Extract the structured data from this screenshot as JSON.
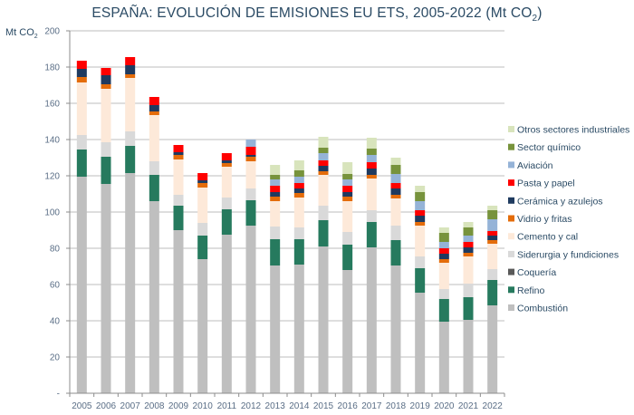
{
  "chart_data": {
    "type": "bar",
    "stacked": true,
    "title": "ESPAÑA: EVOLUCIÓN DE EMISIONES EU ETS, 2005-2022 (Mt CO",
    "title_sub": "2",
    "title_end": ")",
    "ylabel": "Mt CO",
    "ylabel_sub": "2",
    "xlabel": "",
    "ylim": [
      0,
      200
    ],
    "yticks": [
      0,
      20,
      40,
      60,
      80,
      100,
      120,
      140,
      160,
      180,
      200
    ],
    "ytick_labels": [
      "-",
      "20",
      "40",
      "60",
      "80",
      "100",
      "120",
      "140",
      "160",
      "180",
      "200"
    ],
    "grid": true,
    "legend_position": "right",
    "categories": [
      "2005",
      "2006",
      "2007",
      "2008",
      "2009",
      "2010",
      "2011",
      "2012",
      "2013",
      "2014",
      "2015",
      "2016",
      "2017",
      "2018",
      "2019",
      "2020",
      "2021",
      "2022"
    ],
    "series": [
      {
        "name": "Combustión",
        "color": "#bfbfbf",
        "values": [
          119.5,
          115.5,
          121.5,
          106,
          90,
          74,
          87.5,
          92.5,
          70.5,
          71,
          81,
          68,
          80.5,
          70.5,
          55.5,
          39.5,
          40.5,
          48.5
        ]
      },
      {
        "name": "Coquería",
        "color": "#595959",
        "values": [
          0,
          0,
          0,
          0,
          0,
          0,
          0,
          0,
          0,
          0,
          0,
          0,
          0,
          0,
          0,
          0,
          0,
          0
        ]
      },
      {
        "name": "Refino",
        "color": "#267a5e",
        "values": [
          15,
          15,
          15,
          14.5,
          13.5,
          13,
          14,
          14,
          14.5,
          14,
          14.5,
          14,
          14,
          14,
          13.5,
          12.5,
          12.5,
          14
        ]
      },
      {
        "name": "Siderurgia y fundiciones",
        "color": "#d9d9d9",
        "values": [
          8,
          8,
          8,
          7.5,
          6,
          7,
          6.5,
          6.5,
          7,
          6.5,
          8,
          7,
          6.5,
          8,
          6.5,
          5.5,
          7.5,
          6
        ]
      },
      {
        "name": "Cemento y cal",
        "color": "#fde9d9",
        "values": [
          29,
          29.5,
          29.5,
          25.5,
          19.5,
          19.5,
          17,
          15,
          14,
          16.5,
          17,
          17,
          17.5,
          15,
          17,
          14.5,
          15,
          14
        ]
      },
      {
        "name": "Vidrio y fritas",
        "color": "#e46c0a",
        "values": [
          3,
          2.5,
          2,
          2,
          2.5,
          2.5,
          2,
          2.5,
          2.5,
          2.5,
          2,
          2.5,
          2,
          2,
          2,
          2,
          2,
          2
        ]
      },
      {
        "name": "Cerámica y azulejos",
        "color": "#1f3a5f",
        "values": [
          4.5,
          5,
          5,
          3.5,
          1.5,
          1.5,
          1.5,
          1,
          2.5,
          2.5,
          3,
          2.5,
          3.5,
          3.5,
          3.5,
          3,
          3,
          2.5
        ]
      },
      {
        "name": "Pasta y papel",
        "color": "#ff0000",
        "values": [
          4.5,
          4,
          4.5,
          4.5,
          4,
          4,
          4,
          4.5,
          3.5,
          3,
          3,
          3.5,
          3.5,
          3,
          3,
          3,
          3,
          2.5
        ]
      },
      {
        "name": "Aviación",
        "color": "#95b3d7",
        "values": [
          0,
          0,
          0,
          0,
          0,
          0,
          0,
          4,
          3.5,
          3.5,
          4,
          3.5,
          4,
          5,
          5,
          3.5,
          3.5,
          6.5
        ]
      },
      {
        "name": "Sector químico",
        "color": "#77933c",
        "values": [
          0,
          0,
          0,
          0,
          0,
          0,
          0,
          0,
          2.5,
          3.5,
          3,
          3,
          3.5,
          5,
          5,
          5,
          4.5,
          5
        ]
      },
      {
        "name": "Otros sectores industriales",
        "color": "#d8e4bc",
        "values": [
          0,
          0,
          0,
          0,
          0,
          0,
          0,
          0,
          5.5,
          5.5,
          6,
          6.5,
          6,
          4,
          3.5,
          3,
          3,
          2.5
        ]
      }
    ],
    "legend_order": [
      "Otros sectores industriales",
      "Sector químico",
      "Aviación",
      "Pasta y papel",
      "Cerámica y azulejos",
      "Vidrio y fritas",
      "Cemento y cal",
      "Siderurgia y fundiciones",
      "Coquería",
      "Refino",
      "Combustión"
    ]
  }
}
